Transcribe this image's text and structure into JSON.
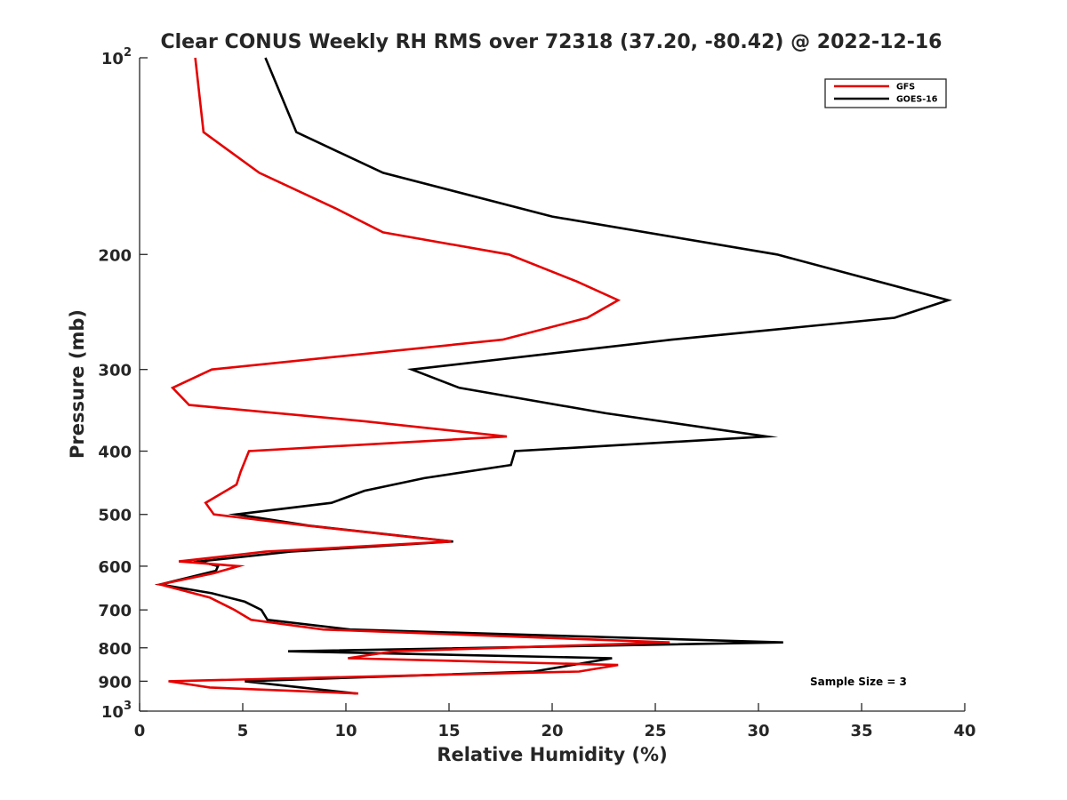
{
  "chart_data": {
    "type": "line",
    "title": "Clear CONUS Weekly RH RMS over 72318 (37.20, -80.42) @ 2022-12-16",
    "xlabel": "Relative Humidity (%)",
    "ylabel": "Pressure (mb)",
    "xlim": [
      0,
      40
    ],
    "ylim": [
      100,
      1000
    ],
    "yscale": "log",
    "y_reversed": true,
    "grid": false,
    "legend_position": "top-right",
    "annotation": "Sample Size = 3",
    "x_ticks": [
      "0",
      "5",
      "10",
      "15",
      "20",
      "25",
      "30",
      "35",
      "40"
    ],
    "y_ticks": [
      {
        "value": 200,
        "label": "200"
      },
      {
        "value": 300,
        "label": "300"
      },
      {
        "value": 400,
        "label": "400"
      },
      {
        "value": 500,
        "label": "500"
      },
      {
        "value": 600,
        "label": "600"
      },
      {
        "value": 700,
        "label": "700"
      },
      {
        "value": 800,
        "label": "800"
      },
      {
        "value": 900,
        "label": "900"
      }
    ],
    "y_exp_ticks": [
      {
        "value": 100,
        "base": "10",
        "exp": "2"
      },
      {
        "value": 1000,
        "base": "10",
        "exp": "3"
      }
    ],
    "series": [
      {
        "name": "GFS",
        "color": "#e60000",
        "points": [
          [
            2.7,
            100
          ],
          [
            3.1,
            130
          ],
          [
            5.8,
            150
          ],
          [
            9.5,
            170
          ],
          [
            11.8,
            185
          ],
          [
            17.9,
            200
          ],
          [
            21.2,
            220
          ],
          [
            23.2,
            235
          ],
          [
            21.7,
            250
          ],
          [
            17.6,
            270
          ],
          [
            3.5,
            300
          ],
          [
            1.6,
            320
          ],
          [
            2.4,
            340
          ],
          [
            10.9,
            360
          ],
          [
            17.8,
            380
          ],
          [
            5.3,
            400
          ],
          [
            4.9,
            430
          ],
          [
            4.7,
            450
          ],
          [
            3.2,
            480
          ],
          [
            3.6,
            500
          ],
          [
            8.1,
            520
          ],
          [
            15.1,
            550
          ],
          [
            6.1,
            570
          ],
          [
            1.9,
            590
          ],
          [
            4.8,
            600
          ],
          [
            3.6,
            615
          ],
          [
            1.0,
            640
          ],
          [
            3.4,
            670
          ],
          [
            4.6,
            700
          ],
          [
            5.4,
            725
          ],
          [
            8.9,
            750
          ],
          [
            25.7,
            785
          ],
          [
            12.3,
            810
          ],
          [
            10.1,
            830
          ],
          [
            23.2,
            850
          ],
          [
            21.3,
            870
          ],
          [
            1.4,
            900
          ],
          [
            3.4,
            920
          ],
          [
            10.6,
            940
          ]
        ]
      },
      {
        "name": "GOES-16",
        "color": "#000000",
        "points": [
          [
            6.1,
            100
          ],
          [
            6.9,
            115
          ],
          [
            7.6,
            130
          ],
          [
            11.8,
            150
          ],
          [
            20.0,
            175
          ],
          [
            30.9,
            200
          ],
          [
            39.2,
            235
          ],
          [
            36.6,
            250
          ],
          [
            25.8,
            270
          ],
          [
            13.2,
            300
          ],
          [
            15.5,
            320
          ],
          [
            22.6,
            350
          ],
          [
            30.4,
            380
          ],
          [
            18.2,
            400
          ],
          [
            18.0,
            420
          ],
          [
            13.8,
            440
          ],
          [
            10.9,
            460
          ],
          [
            9.3,
            480
          ],
          [
            4.7,
            500
          ],
          [
            8.2,
            520
          ],
          [
            15.2,
            550
          ],
          [
            7.3,
            570
          ],
          [
            2.9,
            590
          ],
          [
            3.8,
            600
          ],
          [
            3.7,
            610
          ],
          [
            1.0,
            640
          ],
          [
            3.5,
            660
          ],
          [
            5.1,
            680
          ],
          [
            5.9,
            700
          ],
          [
            6.2,
            725
          ],
          [
            10.2,
            750
          ],
          [
            31.2,
            785
          ],
          [
            7.2,
            810
          ],
          [
            22.9,
            830
          ],
          [
            19.1,
            870
          ],
          [
            5.1,
            900
          ],
          [
            10.5,
            940
          ]
        ]
      }
    ]
  }
}
